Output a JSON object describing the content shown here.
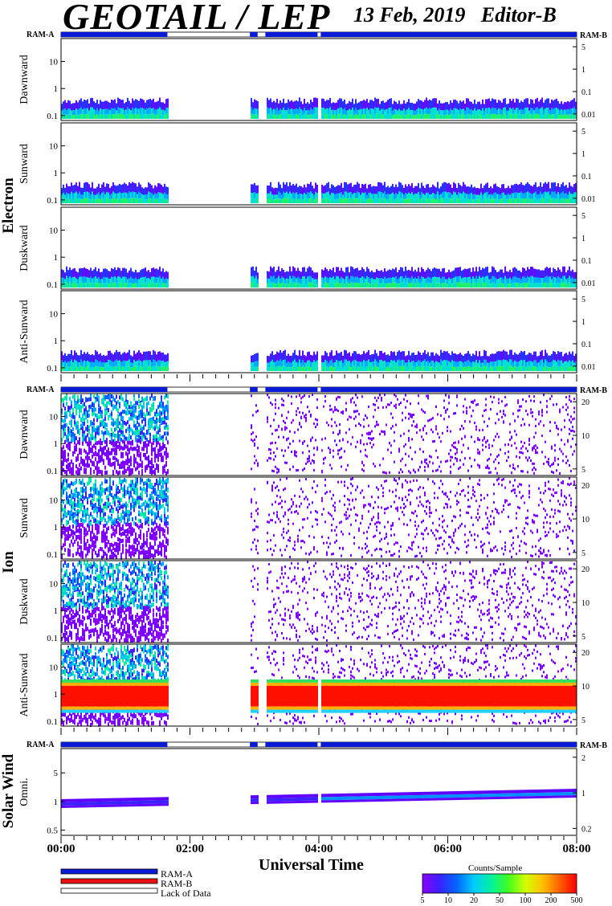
{
  "title": "GEOTAIL / LEP",
  "subtitle": "13 Feb, 2019   Editor-B",
  "ram_a_label": "RAM-A",
  "ram_b_label": "RAM-B",
  "colors": {
    "ram_a": "#0a1bd8",
    "ram_b": "#e81010",
    "lack": "#ffffff"
  },
  "chart_data": {
    "type": "heatmap",
    "xlabel": "Universal Time",
    "x_ticks": [
      "00:00",
      "02:00",
      "04:00",
      "06:00",
      "08:00"
    ],
    "x_range_hours": [
      0,
      8
    ],
    "data_gaps_hours": [
      [
        1.65,
        2.93
      ],
      [
        3.05,
        3.17
      ],
      [
        3.98,
        4.03
      ]
    ],
    "groups": [
      {
        "name": "Electron",
        "panels": [
          {
            "name": "Dawnward",
            "left_ticks": [
              "10",
              "1",
              "0.1"
            ],
            "right_ticks": [
              "5",
              "1",
              "0.1",
              "0.01"
            ]
          },
          {
            "name": "Sunward",
            "left_ticks": [
              "10",
              "1",
              "0.1"
            ],
            "right_ticks": [
              "5",
              "1",
              "0.1",
              "0.01"
            ]
          },
          {
            "name": "Duskward",
            "left_ticks": [
              "10",
              "1",
              "0.1"
            ],
            "right_ticks": [
              "5",
              "1",
              "0.1",
              "0.01"
            ]
          },
          {
            "name": "Anti-Sunward",
            "left_ticks": [
              "10",
              "1",
              "0.1"
            ],
            "right_ticks": [
              "5",
              "1",
              "0.1",
              "0.01"
            ]
          }
        ]
      },
      {
        "name": "Ion",
        "panels": [
          {
            "name": "Dawnward",
            "left_ticks": [
              "10",
              "1",
              "0.1"
            ],
            "right_ticks": [
              "20",
              "10",
              "5"
            ]
          },
          {
            "name": "Sunward",
            "left_ticks": [
              "10",
              "1",
              "0.1"
            ],
            "right_ticks": [
              "20",
              "10",
              "5"
            ]
          },
          {
            "name": "Duskward",
            "left_ticks": [
              "10",
              "1",
              "0.1"
            ],
            "right_ticks": [
              "20",
              "10",
              "5"
            ]
          },
          {
            "name": "Anti-Sunward",
            "left_ticks": [
              "10",
              "1",
              "0.1"
            ],
            "right_ticks": [
              "20",
              "10",
              "5"
            ]
          }
        ]
      },
      {
        "name": "Solar Wind",
        "panels": [
          {
            "name": "Omni.",
            "left_ticks": [
              "5",
              "1",
              "0.5"
            ],
            "right_ticks": [
              "2",
              "1",
              "0.2"
            ]
          }
        ]
      }
    ],
    "legend": [
      {
        "label": "RAM-A",
        "color": "#0a1bd8"
      },
      {
        "label": "RAM-B",
        "color": "#e81010"
      },
      {
        "label": "Lack of Data",
        "color": "#ffffff"
      }
    ],
    "colorbar": {
      "title": "Counts/Sample",
      "ticks": [
        "5",
        "10",
        "20",
        "50",
        "100",
        "200",
        "500"
      ],
      "colors": [
        "#8a00ff",
        "#3a22ff",
        "#0066ff",
        "#00ccff",
        "#00f0a0",
        "#40ff20",
        "#d0ff00",
        "#ffc000",
        "#ff6000",
        "#ff0000"
      ]
    }
  }
}
